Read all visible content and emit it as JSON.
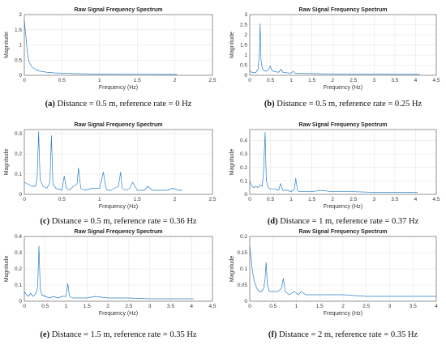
{
  "chart_data": [
    {
      "type": "line",
      "panel": "a",
      "title": "Raw Signal Frequency Spectrum",
      "xlabel": "Frequency (Hz)",
      "ylabel": "Magnitude",
      "xlim": [
        0,
        2.5
      ],
      "ylim": [
        0,
        2
      ],
      "xticks": [
        "0",
        "0.5",
        "1",
        "1.5",
        "2",
        "2.5"
      ],
      "yticks": [
        "0",
        "0.5",
        "1",
        "1.5",
        "2"
      ],
      "grid": true,
      "caption_letter": "(a)",
      "caption_text": " Distance = 0.5 m, reference rate = 0 Hz",
      "x": [
        0,
        0.02,
        0.04,
        0.06,
        0.1,
        0.15,
        0.2,
        0.3,
        0.4,
        0.6,
        0.8,
        1.0,
        1.5,
        2.0,
        2.03
      ],
      "y": [
        1.8,
        1.3,
        0.75,
        0.45,
        0.28,
        0.19,
        0.14,
        0.1,
        0.08,
        0.06,
        0.05,
        0.04,
        0.035,
        0.03,
        0.03
      ]
    },
    {
      "type": "line",
      "panel": "b",
      "title": "Raw Signal Frequency Spectrum",
      "xlabel": "Frequency (Hz)",
      "ylabel": "Magnitude",
      "xlim": [
        0,
        4.5
      ],
      "ylim": [
        0,
        3
      ],
      "xticks": [
        "0",
        "0.5",
        "1",
        "1.5",
        "2",
        "2.5",
        "3",
        "3.5",
        "4",
        "4.5"
      ],
      "yticks": [
        "0",
        "0.5",
        "1",
        "1.5",
        "2",
        "2.5",
        "3"
      ],
      "grid": true,
      "caption_letter": "(b)",
      "caption_text": " Distance = 0.5 m, reference rate = 0.25 Hz",
      "x": [
        0,
        0.05,
        0.1,
        0.15,
        0.2,
        0.23,
        0.25,
        0.27,
        0.3,
        0.35,
        0.4,
        0.45,
        0.5,
        0.52,
        0.55,
        0.6,
        0.7,
        0.75,
        0.8,
        0.9,
        1.0,
        1.05,
        1.1,
        1.2,
        1.4,
        1.6,
        1.8,
        2.0,
        2.5,
        3.0,
        3.5,
        4.0,
        4.1
      ],
      "y": [
        0.25,
        0.15,
        0.12,
        0.15,
        0.3,
        1.0,
        2.55,
        0.8,
        0.35,
        0.22,
        0.2,
        0.28,
        0.45,
        0.3,
        0.22,
        0.18,
        0.15,
        0.3,
        0.15,
        0.12,
        0.11,
        0.2,
        0.11,
        0.09,
        0.09,
        0.08,
        0.07,
        0.07,
        0.06,
        0.06,
        0.05,
        0.05,
        0.05
      ]
    },
    {
      "type": "line",
      "panel": "c",
      "title": "Raw Signal Frequency Spectrum",
      "xlabel": "Frequency (Hz)",
      "ylabel": "Magnitude",
      "xlim": [
        0,
        2.5
      ],
      "ylim": [
        0,
        0.32
      ],
      "xticks": [
        "0",
        "0.5",
        "1",
        "1.5",
        "2",
        "2.5"
      ],
      "yticks": [
        "0",
        "0.1",
        "0.2",
        "0.3"
      ],
      "grid": true,
      "caption_letter": "(c)",
      "caption_text": " Distance = 0.5 m, reference rate = 0.36 Hz",
      "x": [
        0,
        0.05,
        0.1,
        0.15,
        0.17,
        0.19,
        0.21,
        0.25,
        0.3,
        0.34,
        0.36,
        0.38,
        0.42,
        0.5,
        0.53,
        0.56,
        0.6,
        0.65,
        0.7,
        0.72,
        0.75,
        0.8,
        0.9,
        1.0,
        1.05,
        1.08,
        1.1,
        1.15,
        1.25,
        1.28,
        1.3,
        1.35,
        1.4,
        1.44,
        1.5,
        1.6,
        1.64,
        1.7,
        1.8,
        1.9,
        1.97,
        2.05,
        2.1
      ],
      "y": [
        0.06,
        0.05,
        0.04,
        0.04,
        0.08,
        0.31,
        0.07,
        0.04,
        0.03,
        0.06,
        0.29,
        0.05,
        0.03,
        0.02,
        0.09,
        0.03,
        0.02,
        0.04,
        0.05,
        0.13,
        0.03,
        0.02,
        0.03,
        0.03,
        0.11,
        0.04,
        0.02,
        0.02,
        0.04,
        0.11,
        0.03,
        0.02,
        0.03,
        0.06,
        0.02,
        0.02,
        0.04,
        0.02,
        0.02,
        0.02,
        0.03,
        0.02,
        0.02
      ]
    },
    {
      "type": "line",
      "panel": "d",
      "title": "Raw Signal Frequency Spectrum",
      "xlabel": "Frequency (Hz)",
      "ylabel": "Magnitude",
      "xlim": [
        0,
        4.5
      ],
      "ylim": [
        0,
        0.48
      ],
      "xticks": [
        "0",
        "0.5",
        "1",
        "1.5",
        "2",
        "2.5",
        "3",
        "3.5",
        "4",
        "4.5"
      ],
      "yticks": [
        "0",
        "0.1",
        "0.2",
        "0.3",
        "0.4"
      ],
      "grid": true,
      "caption_letter": "(d)",
      "caption_text": " Distance = 1 m, reference rate = 0.37 Hz",
      "x": [
        0,
        0.05,
        0.1,
        0.15,
        0.2,
        0.25,
        0.3,
        0.33,
        0.37,
        0.4,
        0.45,
        0.5,
        0.6,
        0.7,
        0.74,
        0.8,
        0.9,
        1.0,
        1.08,
        1.11,
        1.15,
        1.2,
        1.3,
        1.5,
        1.7,
        2.0,
        2.5,
        3.0,
        3.5,
        4.0,
        4.05
      ],
      "y": [
        0.1,
        0.06,
        0.05,
        0.06,
        0.05,
        0.07,
        0.06,
        0.15,
        0.46,
        0.1,
        0.05,
        0.04,
        0.04,
        0.03,
        0.08,
        0.03,
        0.03,
        0.02,
        0.04,
        0.12,
        0.03,
        0.02,
        0.02,
        0.02,
        0.03,
        0.02,
        0.02,
        0.015,
        0.015,
        0.015,
        0.015
      ]
    },
    {
      "type": "line",
      "panel": "e",
      "title": "Raw Signal Frequency Spectrum",
      "xlabel": "Frequency (Hz)",
      "ylabel": "Magnitude",
      "xlim": [
        0,
        4.5
      ],
      "ylim": [
        0,
        0.4
      ],
      "xticks": [
        "0",
        "0.5",
        "1",
        "1.5",
        "2",
        "2.5",
        "3",
        "3.5",
        "4",
        "4.5"
      ],
      "yticks": [
        "0",
        "0.1",
        "0.2",
        "0.3",
        "0.4"
      ],
      "grid": true,
      "caption_letter": "(e)",
      "caption_text": " Distance = 1.5 m, reference rate = 0.35 Hz",
      "x": [
        0,
        0.05,
        0.1,
        0.15,
        0.2,
        0.25,
        0.3,
        0.32,
        0.35,
        0.38,
        0.42,
        0.5,
        0.6,
        0.7,
        0.8,
        0.9,
        1.0,
        1.04,
        1.08,
        1.15,
        1.3,
        1.5,
        1.7,
        2.0,
        2.5,
        3.0,
        3.5,
        4.0,
        4.05
      ],
      "y": [
        0.06,
        0.04,
        0.03,
        0.05,
        0.03,
        0.04,
        0.06,
        0.1,
        0.34,
        0.08,
        0.04,
        0.03,
        0.02,
        0.03,
        0.02,
        0.03,
        0.03,
        0.11,
        0.03,
        0.02,
        0.02,
        0.02,
        0.03,
        0.02,
        0.02,
        0.015,
        0.015,
        0.015,
        0.015
      ]
    },
    {
      "type": "line",
      "panel": "f",
      "title": "Raw Signal Frequency Spectrum",
      "xlabel": "Frequency (Hz)",
      "ylabel": "Magnitude",
      "xlim": [
        0,
        4
      ],
      "ylim": [
        0,
        0.2
      ],
      "xticks": [
        "0",
        "0.5",
        "1",
        "1.5",
        "2",
        "2.5",
        "3",
        "3.5",
        "4"
      ],
      "yticks": [
        "0",
        "0.05",
        "0.1",
        "0.15",
        "0.2"
      ],
      "grid": true,
      "caption_letter": "(f)",
      "caption_text": " Distance = 2 m, reference rate = 0.35 Hz",
      "x": [
        0,
        0.03,
        0.06,
        0.1,
        0.15,
        0.2,
        0.25,
        0.3,
        0.33,
        0.35,
        0.38,
        0.42,
        0.5,
        0.6,
        0.68,
        0.72,
        0.76,
        0.85,
        0.95,
        1.05,
        1.1,
        1.2,
        1.4,
        1.6,
        2.0,
        2.5,
        3.0,
        3.5,
        4.0
      ],
      "y": [
        0.17,
        0.13,
        0.09,
        0.06,
        0.04,
        0.03,
        0.03,
        0.04,
        0.07,
        0.12,
        0.05,
        0.03,
        0.03,
        0.03,
        0.04,
        0.07,
        0.03,
        0.02,
        0.03,
        0.02,
        0.03,
        0.02,
        0.02,
        0.02,
        0.02,
        0.015,
        0.015,
        0.015,
        0.015
      ]
    }
  ]
}
